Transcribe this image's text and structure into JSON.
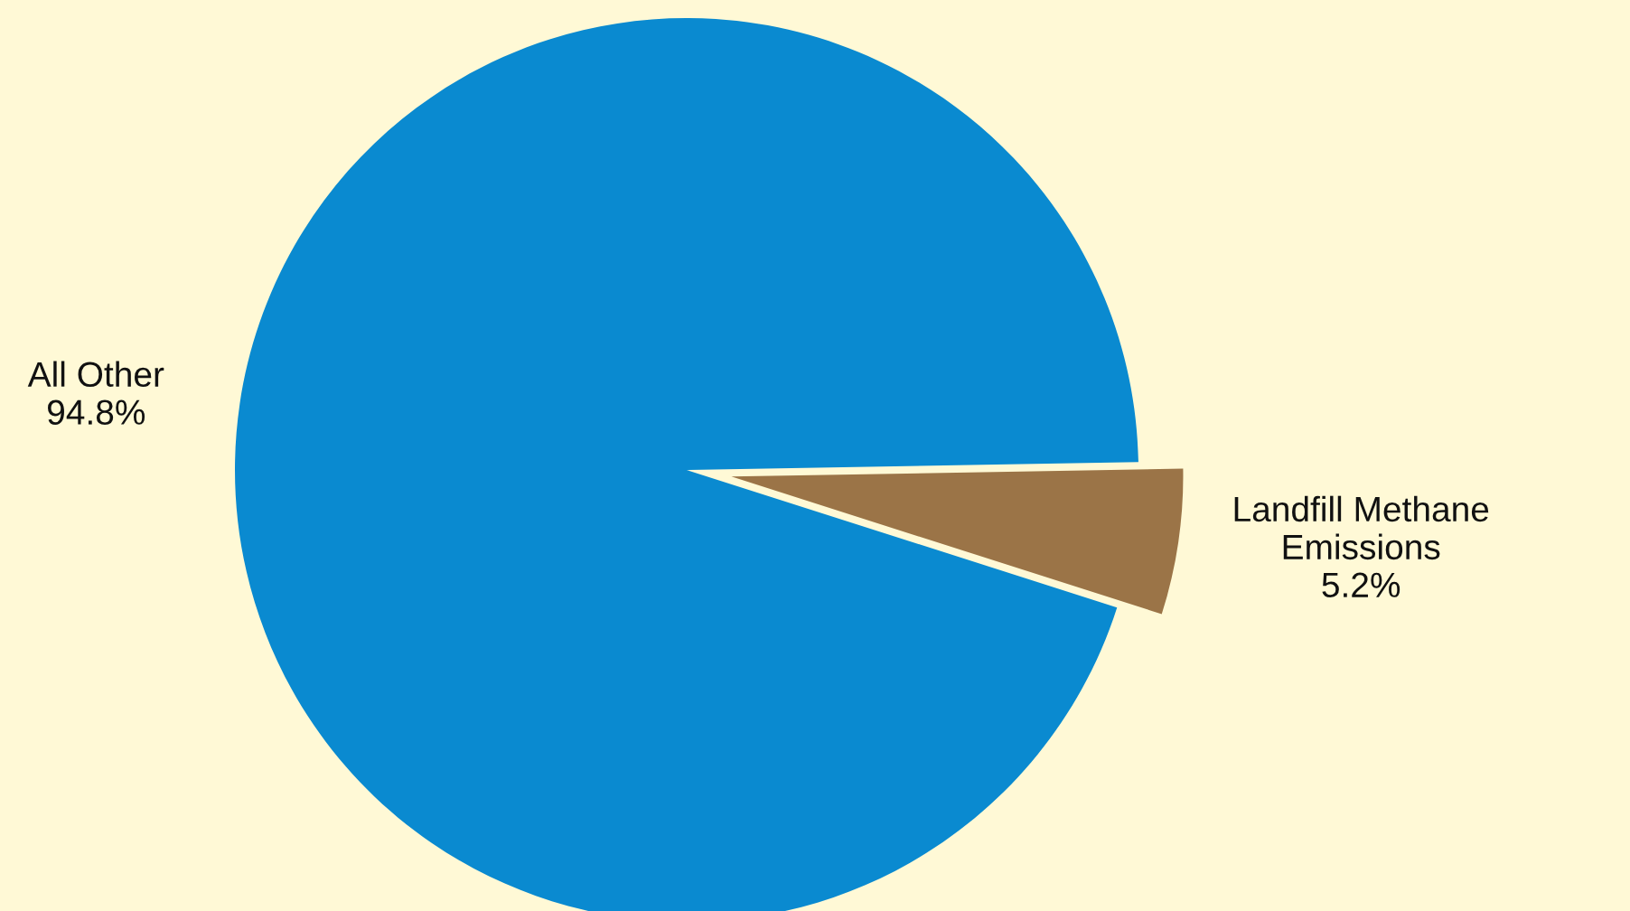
{
  "chart_data": {
    "type": "pie",
    "categories": [
      "All Other",
      "Landfill Methane\nEmissions"
    ],
    "values": [
      94.8,
      5.2
    ],
    "value_labels": [
      "94.8%",
      "5.2%"
    ],
    "colors": [
      "#0a8ad0",
      "#9b7447"
    ]
  }
}
